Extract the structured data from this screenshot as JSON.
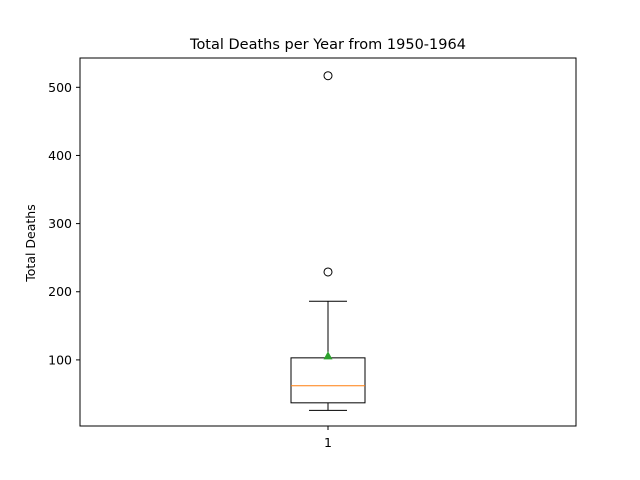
{
  "chart_data": {
    "type": "box",
    "title": "Total Deaths per Year from 1950-1964",
    "xlabel": "",
    "ylabel": "Total Deaths",
    "categories": [
      "1"
    ],
    "box": {
      "whisker_low": 26,
      "q1": 37,
      "median": 62,
      "q3": 103,
      "whisker_high": 186,
      "mean": 106,
      "outliers": [
        229,
        517
      ]
    },
    "ylim": [
      3,
      543
    ],
    "yticks": [
      100,
      200,
      300,
      400,
      500
    ],
    "grid": false,
    "colors": {
      "median": "#ff7f0e",
      "mean": "#2ca02c",
      "box": "#000000"
    }
  }
}
